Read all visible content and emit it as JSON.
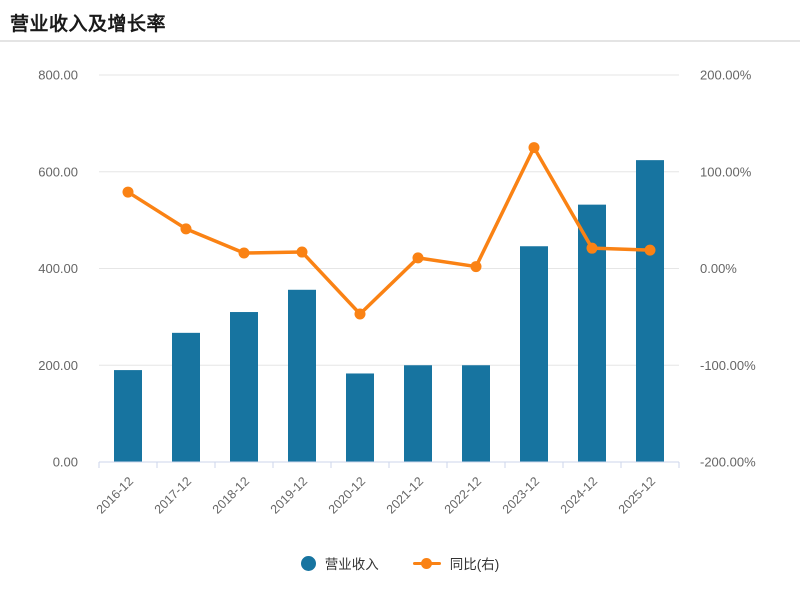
{
  "title": "营业收入及增长率",
  "colors": {
    "bar": "#1774a0",
    "line": "#fa8214",
    "grid": "#e6e6e6",
    "axis_line": "#ccd6eb",
    "axis_text": "#666666",
    "title_text": "#1a1a1a",
    "legend_text": "#333333",
    "divider": "#e4e4e4"
  },
  "chart_data": {
    "type": "bar+line combo",
    "title": "营业收入及增长率",
    "categories": [
      "2016-12",
      "2017-12",
      "2018-12",
      "2019-12",
      "2020-12",
      "2021-12",
      "2022-12",
      "2023-12",
      "2024-12",
      "2025-12"
    ],
    "series": [
      {
        "name": "营业收入",
        "type": "bar",
        "y_axis": "left",
        "color": "#1774a0",
        "values": [
          190,
          267,
          310,
          356,
          183,
          200,
          200,
          446,
          532,
          624
        ]
      },
      {
        "name": "同比(右)",
        "type": "line",
        "y_axis": "right",
        "color": "#fa8214",
        "values": [
          79,
          41,
          16,
          17,
          -47,
          11,
          2,
          125,
          21,
          19
        ]
      }
    ],
    "left_axis": {
      "min": 0,
      "max": 800,
      "tick_labels": [
        "0.00",
        "200.00",
        "400.00",
        "600.00",
        "800.00"
      ]
    },
    "right_axis": {
      "min": -200,
      "max": 200,
      "tick_labels": [
        "-200.00%",
        "-100.00%",
        "0.00%",
        "100.00%",
        "200.00%"
      ]
    },
    "grid": true,
    "x_labels_rotation": -45,
    "legend_position": "bottom"
  },
  "legend": {
    "items": [
      {
        "label": "营业收入",
        "marker": "circle"
      },
      {
        "label": "同比(右)",
        "marker": "line-dot"
      }
    ]
  }
}
